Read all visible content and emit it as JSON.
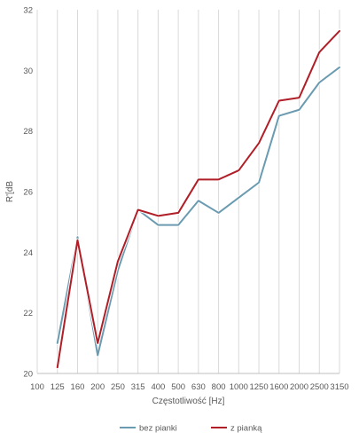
{
  "chart_data": {
    "type": "line",
    "categories": [
      "100",
      "125",
      "160",
      "200",
      "250",
      "315",
      "400",
      "500",
      "630",
      "800",
      "1000",
      "1250",
      "1600",
      "2000",
      "2500",
      "3150"
    ],
    "series": [
      {
        "name": "bez pianki",
        "color": "#6a9bb0",
        "values": [
          null,
          21.0,
          24.5,
          20.6,
          23.4,
          25.4,
          24.9,
          24.9,
          25.7,
          25.3,
          25.8,
          26.3,
          28.5,
          28.7,
          29.6,
          30.1
        ]
      },
      {
        "name": "z pianką",
        "color": "#b01e27",
        "values": [
          null,
          20.2,
          24.4,
          21.0,
          23.7,
          25.4,
          25.2,
          25.3,
          26.4,
          26.4,
          26.7,
          27.6,
          29.0,
          29.1,
          30.6,
          31.3
        ]
      }
    ],
    "xlabel": "Częstotliwość [Hz]",
    "ylabel": "R'[dB",
    "ylim": [
      20,
      32
    ],
    "yticks": [
      20,
      22,
      24,
      26,
      28,
      30,
      32
    ],
    "grid": "vertical",
    "legend": "bottom"
  }
}
